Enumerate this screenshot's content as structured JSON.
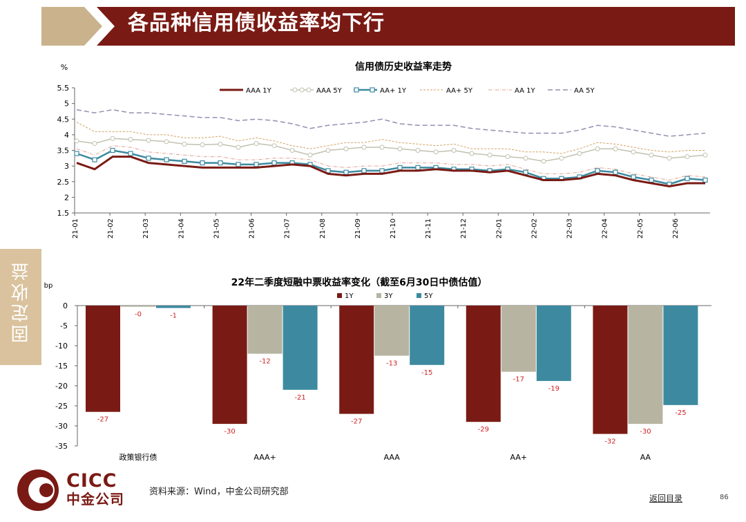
{
  "header": {
    "title": "各品种信用债收益率均下行"
  },
  "side_tab": {
    "label": "固定收益"
  },
  "footer": {
    "source": "资料来源：Wind，中金公司研究部",
    "back_link": "返回目录",
    "page_number": "86"
  },
  "logo": {
    "name_en": "CICC",
    "name_cn": "中金公司"
  },
  "colors": {
    "brand": "#7a1a14",
    "accent": "#c9b28c",
    "gray": "#b7b4a2",
    "teal": "#3d8aa0"
  },
  "chart_data": [
    {
      "type": "line",
      "title": "信用债历史收益率走势",
      "ylabel": "%",
      "ylim": [
        1.5,
        5.5
      ],
      "yticks": [
        "1.5",
        "2",
        "2.5",
        "3",
        "3.5",
        "4",
        "4.5",
        "5",
        "5.5"
      ],
      "x_labels": [
        "21-01",
        "21-02",
        "21-03",
        "21-04",
        "21-05",
        "21-06",
        "21-07",
        "21-08",
        "21-09",
        "21-10",
        "21-11",
        "21-12",
        "22-01",
        "22-02",
        "22-03",
        "22-04",
        "22-05",
        "22-06"
      ],
      "series": [
        {
          "name": "AAA 1Y",
          "color": "#7a1a14",
          "values": [
            3.1,
            2.9,
            3.3,
            3.3,
            3.1,
            3.05,
            3.0,
            2.95,
            2.95,
            2.95,
            2.95,
            3.0,
            3.05,
            3.0,
            2.75,
            2.7,
            2.75,
            2.75,
            2.85,
            2.85,
            2.9,
            2.85,
            2.85,
            2.8,
            2.85,
            2.7,
            2.55,
            2.55,
            2.6,
            2.75,
            2.7,
            2.55,
            2.45,
            2.35,
            2.45,
            2.45
          ]
        },
        {
          "name": "AAA 5Y",
          "color": "#c0c0b0",
          "values": [
            3.8,
            3.72,
            3.88,
            3.85,
            3.82,
            3.78,
            3.7,
            3.68,
            3.7,
            3.6,
            3.72,
            3.65,
            3.5,
            3.35,
            3.5,
            3.55,
            3.6,
            3.6,
            3.55,
            3.5,
            3.45,
            3.5,
            3.4,
            3.35,
            3.3,
            3.25,
            3.15,
            3.25,
            3.4,
            3.55,
            3.55,
            3.45,
            3.35,
            3.25,
            3.3,
            3.35
          ]
        },
        {
          "name": "AA+ 1Y",
          "color": "#3d8aa0",
          "values": [
            3.4,
            3.2,
            3.5,
            3.4,
            3.25,
            3.2,
            3.15,
            3.1,
            3.1,
            3.05,
            3.05,
            3.1,
            3.1,
            3.05,
            2.85,
            2.8,
            2.85,
            2.85,
            2.95,
            2.95,
            2.95,
            2.9,
            2.9,
            2.85,
            2.9,
            2.8,
            2.6,
            2.6,
            2.65,
            2.85,
            2.8,
            2.65,
            2.55,
            2.42,
            2.6,
            2.55
          ]
        },
        {
          "name": "AA+ 5Y",
          "color": "#d4a060",
          "values": [
            4.4,
            4.1,
            4.1,
            4.1,
            4.0,
            4.0,
            3.9,
            3.9,
            3.95,
            3.8,
            3.9,
            3.8,
            3.65,
            3.55,
            3.65,
            3.75,
            3.75,
            3.85,
            3.75,
            3.7,
            3.65,
            3.7,
            3.55,
            3.55,
            3.55,
            3.45,
            3.45,
            3.4,
            3.55,
            3.75,
            3.7,
            3.6,
            3.5,
            3.45,
            3.5,
            3.5
          ]
        },
        {
          "name": "AA 1Y",
          "color": "#e0a090",
          "values": [
            3.55,
            3.35,
            3.65,
            3.6,
            3.45,
            3.4,
            3.35,
            3.3,
            3.3,
            3.2,
            3.2,
            3.25,
            3.25,
            3.2,
            3.0,
            2.95,
            3.0,
            3.0,
            3.1,
            3.1,
            3.1,
            3.05,
            3.05,
            3.0,
            3.05,
            2.9,
            2.75,
            2.75,
            2.8,
            2.95,
            2.9,
            2.75,
            2.65,
            2.55,
            2.7,
            2.65
          ]
        },
        {
          "name": "AA 5Y",
          "color": "#9090b0",
          "values": [
            4.8,
            4.7,
            4.8,
            4.7,
            4.7,
            4.65,
            4.6,
            4.55,
            4.55,
            4.45,
            4.5,
            4.45,
            4.35,
            4.2,
            4.3,
            4.35,
            4.4,
            4.5,
            4.35,
            4.3,
            4.3,
            4.3,
            4.2,
            4.15,
            4.1,
            4.05,
            4.05,
            4.05,
            4.15,
            4.3,
            4.25,
            4.15,
            4.05,
            3.95,
            4.0,
            4.05
          ]
        }
      ]
    },
    {
      "type": "bar",
      "title": "22年二季度短融中票收益率变化（截至6月30日中债估值）",
      "ylabel": "bp",
      "ylim": [
        -35,
        0
      ],
      "yticks": [
        "0",
        "-5",
        "-10",
        "-15",
        "-20",
        "-25",
        "-30",
        "-35"
      ],
      "categories": [
        "政策银行债",
        "AAA+",
        "AAA",
        "AA+",
        "AA"
      ],
      "series": [
        {
          "name": "1Y",
          "color": "#7a1a14",
          "values": [
            -26.5,
            -29.5,
            -27,
            -29,
            -32
          ],
          "labels": [
            "-27",
            "-30",
            "-27",
            "-29",
            "-32"
          ]
        },
        {
          "name": "3Y",
          "color": "#b7b4a2",
          "values": [
            -0.3,
            -12,
            -12.5,
            -16.5,
            -29.5
          ],
          "labels": [
            "-0",
            "-12",
            "-13",
            "-17",
            "-30"
          ]
        },
        {
          "name": "5Y",
          "color": "#3d8aa0",
          "values": [
            -0.6,
            -21,
            -14.8,
            -18.8,
            -24.8
          ],
          "labels": [
            "-1",
            "-21",
            "-15",
            "-19",
            "-25"
          ]
        }
      ]
    }
  ]
}
